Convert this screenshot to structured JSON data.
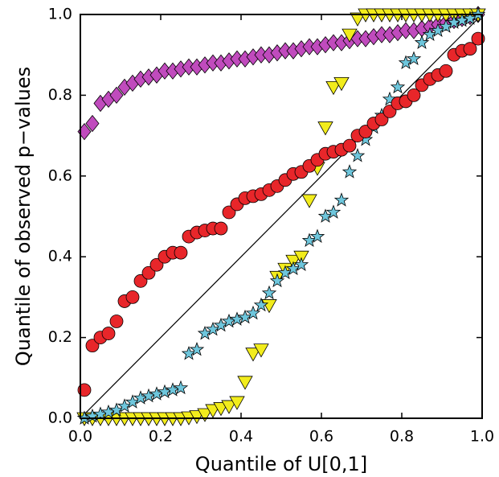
{
  "chart_data": {
    "type": "scatter",
    "xlabel": "Quantile of U[0,1]",
    "ylabel": "Quantile of observed p−values",
    "xlim": [
      0,
      1
    ],
    "ylim": [
      0,
      1
    ],
    "xticks": [
      {
        "value": 0,
        "label": "0.0"
      },
      0.2,
      0.4,
      0.6,
      0.8,
      {
        "value": 1,
        "label": "1.0"
      }
    ],
    "yticks": [
      {
        "value": 0,
        "label": "0.0"
      },
      0.2,
      0.4,
      0.6,
      0.8,
      {
        "value": 1,
        "label": "1.0"
      }
    ],
    "grid": false,
    "reference_line": true,
    "x": [
      0.01,
      0.03,
      0.05,
      0.07,
      0.09,
      0.11,
      0.13,
      0.15,
      0.17,
      0.19,
      0.21,
      0.23,
      0.25,
      0.27,
      0.29,
      0.31,
      0.33,
      0.35,
      0.37,
      0.39,
      0.41,
      0.43,
      0.45,
      0.47,
      0.49,
      0.51,
      0.53,
      0.55,
      0.57,
      0.59,
      0.61,
      0.63,
      0.65,
      0.67,
      0.69,
      0.71,
      0.73,
      0.75,
      0.77,
      0.79,
      0.81,
      0.83,
      0.85,
      0.87,
      0.89,
      0.91,
      0.93,
      0.95,
      0.97,
      0.99
    ],
    "series": [
      {
        "color": "#c04bbd",
        "marker": "diamond",
        "values": [
          0.71,
          0.73,
          0.78,
          0.79,
          0.8,
          0.82,
          0.83,
          0.84,
          0.845,
          0.85,
          0.86,
          0.86,
          0.865,
          0.87,
          0.87,
          0.875,
          0.88,
          0.88,
          0.885,
          0.89,
          0.89,
          0.895,
          0.9,
          0.9,
          0.905,
          0.91,
          0.91,
          0.915,
          0.92,
          0.92,
          0.925,
          0.93,
          0.93,
          0.935,
          0.94,
          0.94,
          0.945,
          0.95,
          0.95,
          0.955,
          0.96,
          0.96,
          0.965,
          0.97,
          0.975,
          0.98,
          0.985,
          0.99,
          0.995,
          1.0
        ]
      },
      {
        "color": "#f2ec1c",
        "marker": "triangle-down",
        "values": [
          0,
          0,
          0,
          0,
          0,
          0,
          0,
          0,
          0,
          0,
          0,
          0,
          0,
          0.002,
          0.005,
          0.01,
          0.02,
          0.025,
          0.03,
          0.04,
          0.09,
          0.16,
          0.17,
          0.28,
          0.35,
          0.37,
          0.39,
          0.4,
          0.54,
          0.62,
          0.72,
          0.82,
          0.83,
          0.95,
          0.99,
          1.0,
          1.0,
          1.0,
          1.0,
          1.0,
          1.0,
          1.0,
          1.0,
          1.0,
          1.0,
          1.0,
          1.0,
          1.0,
          1.0,
          1.0
        ]
      },
      {
        "color": "#6ec6dc",
        "marker": "star",
        "values": [
          0,
          0.005,
          0.01,
          0.015,
          0.02,
          0.03,
          0.04,
          0.05,
          0.055,
          0.06,
          0.065,
          0.07,
          0.075,
          0.16,
          0.17,
          0.21,
          0.22,
          0.23,
          0.24,
          0.245,
          0.25,
          0.26,
          0.28,
          0.31,
          0.34,
          0.36,
          0.37,
          0.38,
          0.44,
          0.45,
          0.5,
          0.51,
          0.54,
          0.61,
          0.65,
          0.69,
          0.72,
          0.75,
          0.79,
          0.82,
          0.88,
          0.89,
          0.93,
          0.95,
          0.96,
          0.97,
          0.98,
          0.985,
          0.99,
          1.0
        ]
      },
      {
        "color": "#e8262a",
        "marker": "circle",
        "values": [
          0.07,
          0.18,
          0.2,
          0.21,
          0.24,
          0.29,
          0.3,
          0.34,
          0.36,
          0.38,
          0.4,
          0.41,
          0.41,
          0.45,
          0.46,
          0.465,
          0.47,
          0.47,
          0.51,
          0.53,
          0.545,
          0.55,
          0.555,
          0.565,
          0.575,
          0.59,
          0.605,
          0.61,
          0.625,
          0.64,
          0.655,
          0.66,
          0.665,
          0.675,
          0.7,
          0.71,
          0.73,
          0.74,
          0.76,
          0.78,
          0.785,
          0.8,
          0.825,
          0.84,
          0.85,
          0.86,
          0.9,
          0.91,
          0.915,
          0.94
        ]
      }
    ]
  }
}
